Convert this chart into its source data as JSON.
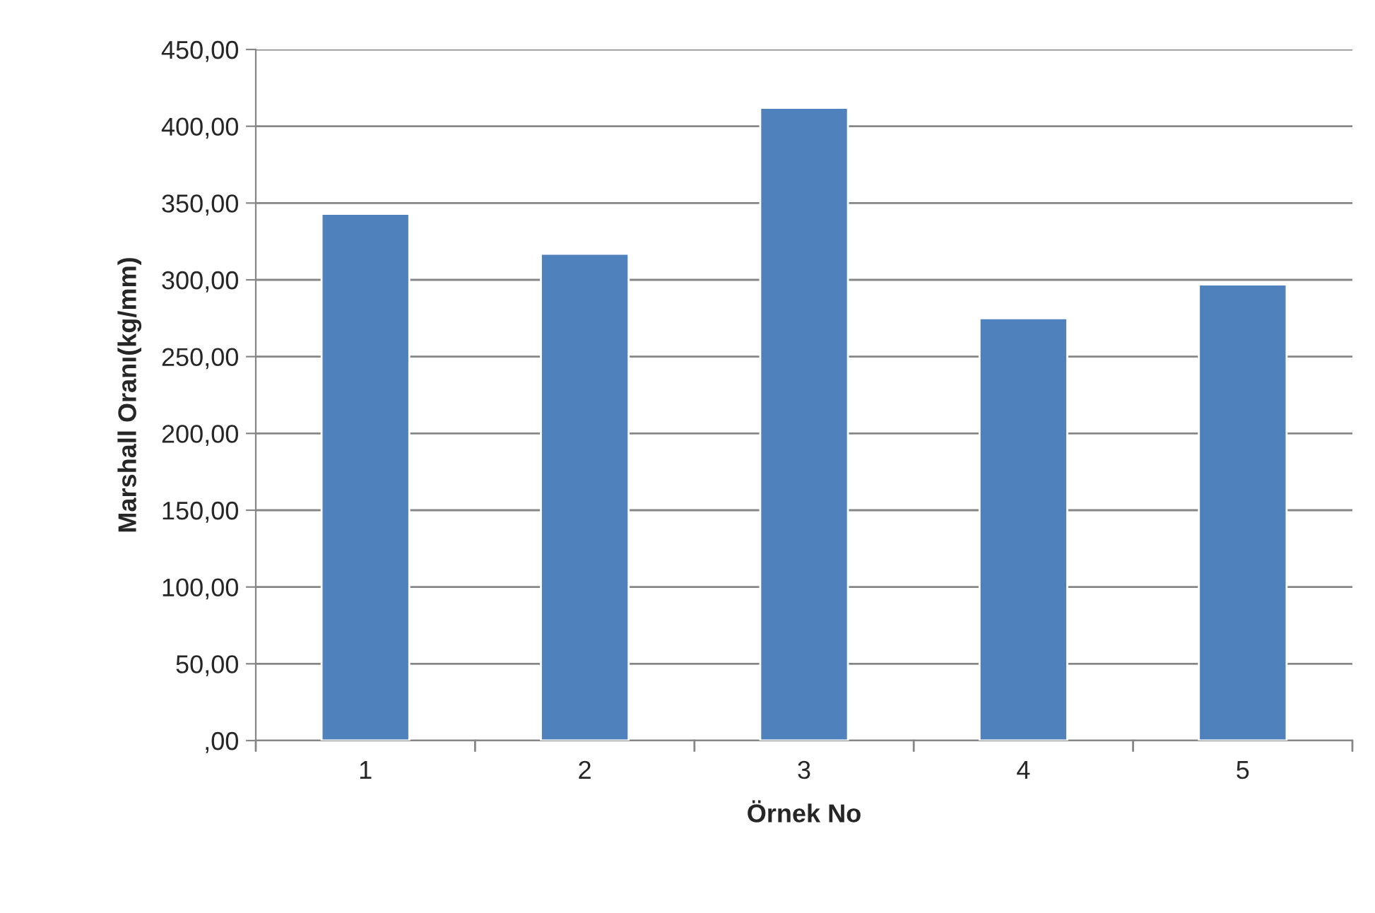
{
  "chart_data": {
    "type": "bar",
    "xlabel": "Örnek No",
    "ylabel": "Marshall Oranı(kg/mm)",
    "categories": [
      "1",
      "2",
      "3",
      "4",
      "5"
    ],
    "values": [
      343,
      317,
      412,
      275,
      297
    ],
    "color": "#4f81bd",
    "ylim": [
      0,
      450
    ],
    "yticks": [
      {
        "value": 0,
        "label": ",00"
      },
      {
        "value": 50,
        "label": "50,00"
      },
      {
        "value": 100,
        "label": "100,00"
      },
      {
        "value": 150,
        "label": "150,00"
      },
      {
        "value": 200,
        "label": "200,00"
      },
      {
        "value": 250,
        "label": "250,00"
      },
      {
        "value": 300,
        "label": "300,00"
      },
      {
        "value": 350,
        "label": "350,00"
      },
      {
        "value": 400,
        "label": "400,00"
      },
      {
        "value": 450,
        "label": "450,00"
      }
    ],
    "grid": "y",
    "legend": false
  }
}
